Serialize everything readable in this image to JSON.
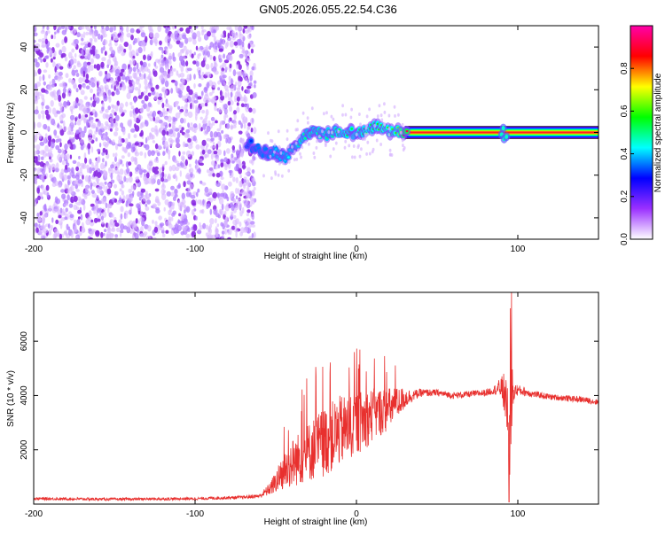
{
  "title": "GN05.2026.055.22.54.C36",
  "colors": {
    "snr_line": "#e8302e",
    "axis": "#000000",
    "background": "#ffffff"
  },
  "chart_data": [
    {
      "type": "heatmap",
      "xlabel": "Height of straight line (km)",
      "ylabel": "Frequency (Hz)",
      "xlim": [
        -200,
        150
      ],
      "ylim": [
        -50,
        50
      ],
      "x_ticks": [
        -200,
        -100,
        0,
        100
      ],
      "x_tick_labels": [
        "-200",
        "-100",
        "0",
        "100"
      ],
      "y_ticks": [
        -40,
        -20,
        0,
        20,
        40
      ],
      "y_tick_labels": [
        "-40",
        "-20",
        "0",
        "20",
        "40"
      ],
      "colorbar": {
        "label": "Normalized spectral amplitude",
        "range": [
          0,
          1
        ],
        "ticks": [
          0,
          0.2,
          0.4,
          0.6,
          0.8
        ],
        "tick_labels": [
          "0.0",
          "0.2",
          "0.4",
          "0.6",
          "0.8"
        ],
        "colormap": [
          "#ffffff",
          "#9b30ff",
          "#0000ff",
          "#00ffff",
          "#00ff00",
          "#ffff00",
          "#ff0000",
          "#ff00aa"
        ]
      },
      "noise_region_x": [
        -200,
        -65
      ],
      "signal_track": {
        "x": [
          -65,
          -60,
          -55,
          -50,
          -45,
          -40,
          -35,
          -30,
          -25,
          -20,
          -15,
          -10,
          -5,
          0,
          5,
          10,
          15,
          20,
          25,
          30,
          40,
          60,
          80,
          90,
          92,
          95,
          100,
          150
        ],
        "freq": [
          -6,
          -8,
          -10,
          -9,
          -12,
          -8,
          -4,
          0,
          0,
          -1,
          0,
          1,
          0,
          0,
          1,
          2,
          3,
          1,
          1,
          0,
          0,
          0,
          0,
          0,
          -2,
          0,
          0,
          0
        ],
        "amplitude": [
          0.3,
          0.35,
          0.35,
          0.4,
          0.4,
          0.45,
          0.5,
          0.5,
          0.5,
          0.5,
          0.5,
          0.55,
          0.55,
          0.55,
          0.55,
          0.55,
          0.6,
          0.6,
          0.6,
          0.9,
          1,
          1,
          1,
          1,
          0.4,
          1,
          1,
          1
        ]
      }
    },
    {
      "type": "line",
      "xlabel": "Height of straight line (km)",
      "ylabel": "SNR (10 * v/v)",
      "xlim": [
        -200,
        150
      ],
      "ylim": [
        0,
        7800
      ],
      "x_ticks": [
        -200,
        -100,
        0,
        100
      ],
      "x_tick_labels": [
        "-200",
        "-100",
        "0",
        "100"
      ],
      "y_ticks": [
        2000,
        4000,
        6000
      ],
      "y_tick_labels": [
        "2000",
        "4000",
        "6000"
      ],
      "series": [
        {
          "x": [
            -200,
            -150,
            -100,
            -70,
            -60,
            -55,
            -50,
            -45,
            -40,
            -35,
            -30,
            -25,
            -20,
            -15,
            -10,
            -5,
            0,
            5,
            10,
            15,
            20,
            25,
            30,
            35,
            40,
            50,
            60,
            70,
            80,
            85,
            90,
            92,
            94,
            95,
            96,
            98,
            100,
            110,
            120,
            130,
            140,
            150
          ],
          "y": [
            200,
            180,
            200,
            250,
            300,
            500,
            800,
            1200,
            1500,
            1700,
            1900,
            2100,
            2300,
            2500,
            2700,
            2800,
            3000,
            3100,
            3300,
            3400,
            3500,
            3700,
            3900,
            4000,
            4100,
            4100,
            4000,
            4050,
            4100,
            4200,
            4300,
            4000,
            3600,
            2000,
            4000,
            4200,
            4200,
            4050,
            3950,
            3900,
            3850,
            3750
          ],
          "noise": [
            50,
            50,
            50,
            60,
            80,
            200,
            400,
            700,
            900,
            1000,
            1100,
            1200,
            1300,
            1300,
            1300,
            1250,
            1200,
            1100,
            1000,
            900,
            800,
            600,
            400,
            200,
            150,
            120,
            120,
            120,
            130,
            150,
            400,
            900,
            1600,
            1800,
            1600,
            300,
            200,
            120,
            110,
            110,
            110,
            110
          ]
        }
      ]
    }
  ]
}
